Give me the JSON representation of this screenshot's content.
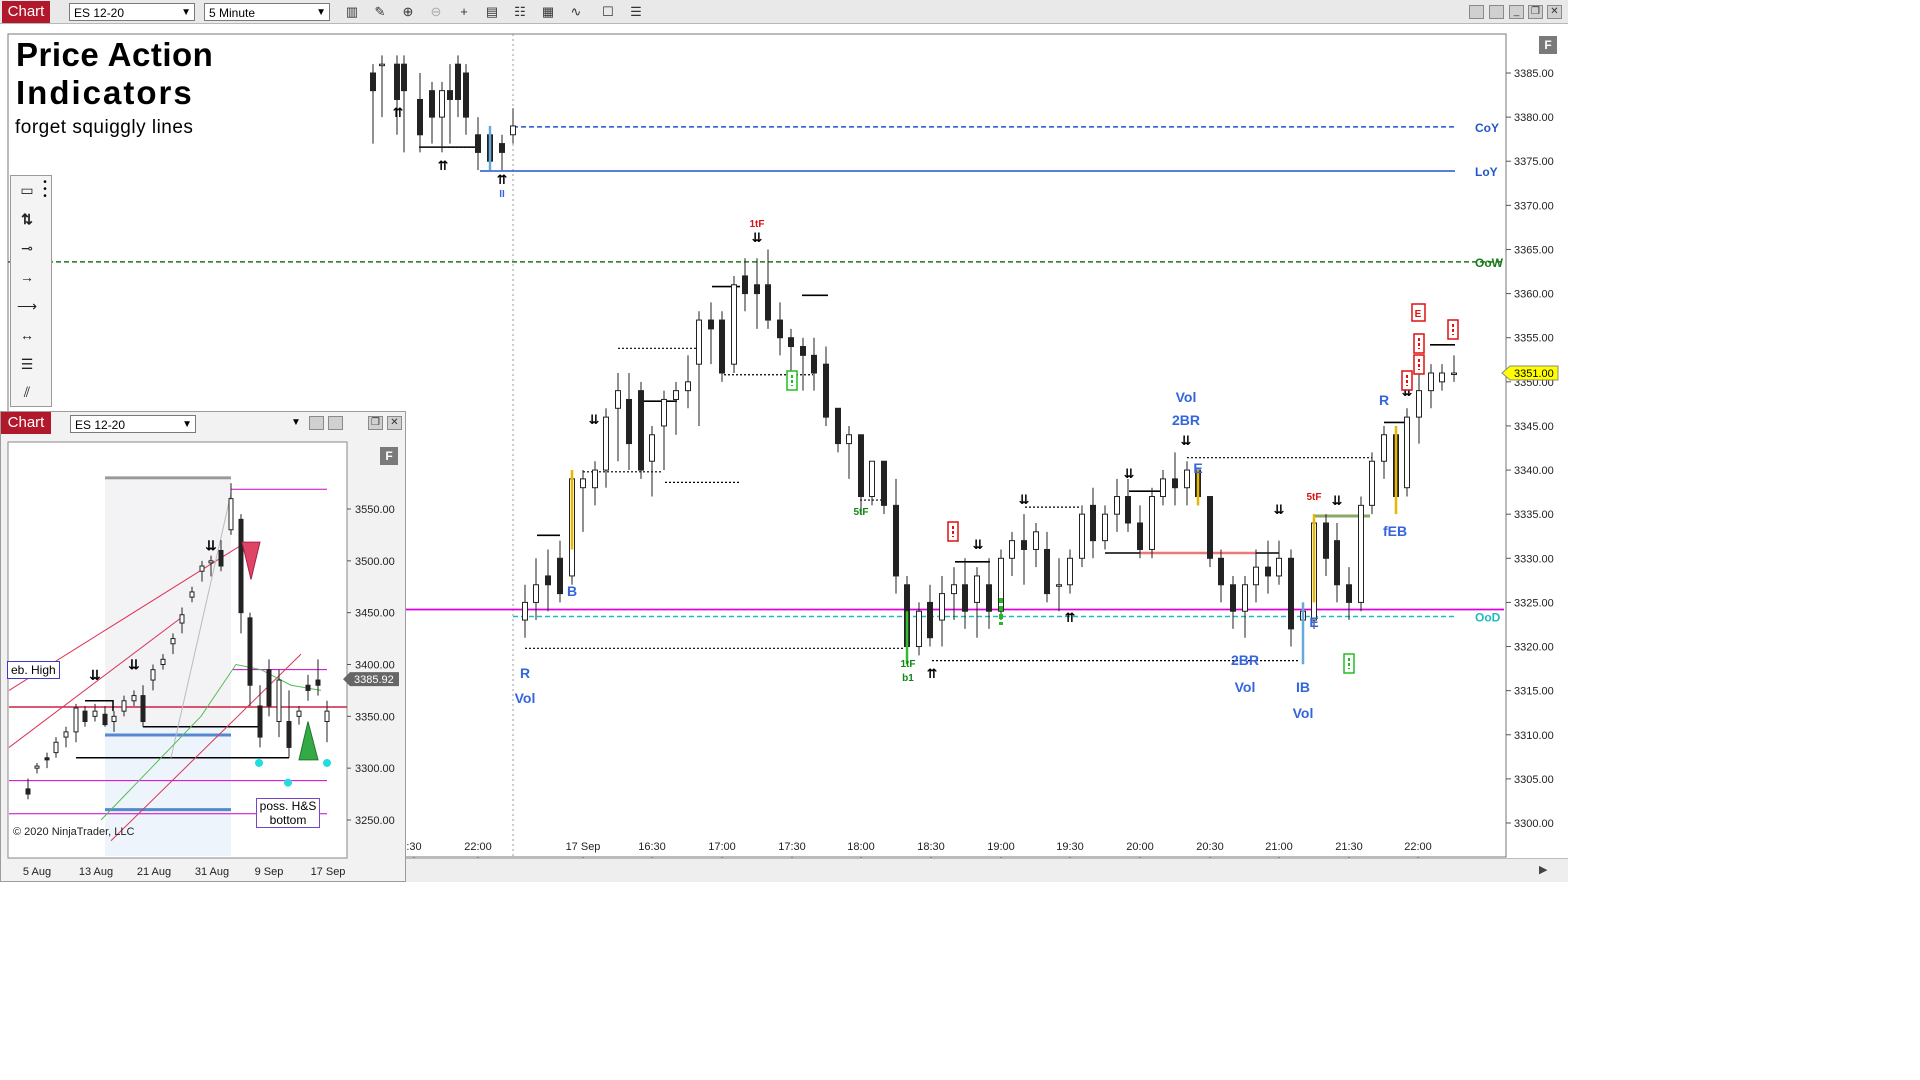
{
  "toolbar": {
    "tab_label": "Chart",
    "instrument": "ES 12-20",
    "interval": "5 Minute",
    "icons": [
      "bar-type-icon",
      "pencil-icon",
      "zoom-in-icon",
      "zoom-out-icon",
      "crosshair-icon",
      "properties-icon",
      "templates-icon",
      "strategies-icon",
      "indicators-icon",
      "data-box-icon",
      "list-icon"
    ],
    "f_button": "F"
  },
  "title": {
    "line1": "Price Action",
    "line2": "Indicators",
    "line3": "forget squiggly lines"
  },
  "drawing_tools": [
    "ruler-icon",
    "risk-reward-icon",
    "line-icon",
    "ray-icon",
    "extended-line-icon",
    "arrow-line-icon",
    "horizontal-lines-icon",
    "diagonal-lines-icon"
  ],
  "chart_data": {
    "type": "candlestick",
    "title": "",
    "instrument": "ES 12-20",
    "interval": "5 Minute",
    "x_ticks": [
      ":30",
      "22:00",
      "17 Sep",
      "16:30",
      "17:00",
      "17:30",
      "18:00",
      "18:30",
      "19:00",
      "19:30",
      "20:00",
      "20:30",
      "21:00",
      "21:30",
      "22:00"
    ],
    "y_ticks": [
      "3385.00",
      "3380.00",
      "3375.00",
      "3370.00",
      "3365.00",
      "3360.00",
      "3355.00",
      "3350.00",
      "3345.00",
      "3340.00",
      "3335.00",
      "3330.00",
      "3325.00",
      "3320.00",
      "3315.00",
      "3310.00",
      "3305.00",
      "3300.00"
    ],
    "ylim": [
      3299,
      3388
    ],
    "last_price": "3351.00",
    "level_lines": [
      {
        "label": "CoY",
        "value": 3378.9,
        "color": "#2255cc",
        "style": "dashed"
      },
      {
        "label": "LoY",
        "value": 3373.9,
        "color": "#2255cc",
        "style": "solid"
      },
      {
        "label": "OoW",
        "value": 3363.6,
        "color": "#1a7a1a",
        "style": "dashed"
      },
      {
        "label": "OoD",
        "value": 3323.4,
        "color": "#22bbbb",
        "style": "dashed"
      }
    ],
    "magenta_level": 3324.2,
    "annotations": [
      {
        "text": "II",
        "color": "#3366dd"
      },
      {
        "text": "1tF",
        "color": "#dd1111"
      },
      {
        "text": "5tF",
        "color": "#118811"
      },
      {
        "text": "1tF",
        "color": "#118811"
      },
      {
        "text": "b1",
        "color": "#118811"
      },
      {
        "text": "B",
        "color": "#3366dd"
      },
      {
        "text": "R",
        "color": "#3366dd"
      },
      {
        "text": "Vol",
        "color": "#3366dd"
      },
      {
        "text": "Vol",
        "color": "#3366dd"
      },
      {
        "text": "2BR",
        "color": "#3366dd"
      },
      {
        "text": "E",
        "color": "#3366dd"
      },
      {
        "text": "2BR",
        "color": "#3366dd"
      },
      {
        "text": "Vol",
        "color": "#3366dd"
      },
      {
        "text": "IB",
        "color": "#3366dd"
      },
      {
        "text": "Vol",
        "color": "#3366dd"
      },
      {
        "text": "E",
        "color": "#3366dd"
      },
      {
        "text": "5tF",
        "color": "#dd1111"
      },
      {
        "text": "fEB",
        "color": "#3366dd"
      },
      {
        "text": "R",
        "color": "#3366dd"
      },
      {
        "text": "E",
        "color": "#dd1111"
      }
    ]
  },
  "inset": {
    "tab_label": "Chart",
    "instrument": "ES 12-20",
    "copyright": "© 2020 NinjaTrader, LLC",
    "label_high": "eb. High",
    "label_hs_line1": "poss. H&S",
    "label_hs_line2": "bottom",
    "last_price": "3385.92",
    "y_ticks": [
      "3550.00",
      "3500.00",
      "3450.00",
      "3400.00",
      "3350.00",
      "3300.00",
      "3250.00"
    ],
    "x_ticks": [
      "5 Aug",
      "13 Aug",
      "21 Aug",
      "31 Aug",
      "9 Sep",
      "17 Sep"
    ],
    "f_button": "F"
  }
}
